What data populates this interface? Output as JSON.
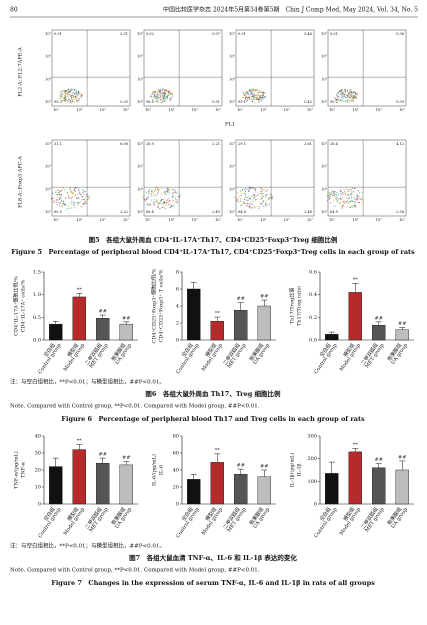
{
  "header": {
    "page": "80",
    "journal": "中国比较医学杂志 2024年5月第34卷第5期　Chin J Comp Med, May 2024, Vol. 34, No. 5"
  },
  "figure5": {
    "row_labels": [
      "FL2-A::FL2:7APE-A",
      "FL8-A::Foxp3 APC-A"
    ],
    "x_label": "FL1",
    "ticks": [
      "10¹",
      "10³",
      "10⁵",
      "10⁷"
    ],
    "plots": [
      [
        {
          "q1": "0.01",
          "q2": "0.31",
          "q3": "99.3",
          "q4": "0.35"
        },
        {
          "q1": "0.02",
          "q2": "0.97",
          "q3": "98.5",
          "q4": "0.51"
        },
        {
          "q1": "0.01",
          "q2": "0.46",
          "q3": "99.1",
          "q4": "0.42"
        },
        {
          "q1": "0.01",
          "q2": "0.38",
          "q3": "99.2",
          "q4": "0.39"
        }
      ],
      [
        {
          "q1": "31.1",
          "q2": "6.08",
          "q3": "60.5",
          "q4": "2.32"
        },
        {
          "q1": "26.9",
          "q2": "2.21",
          "q3": "68.4",
          "q4": "2.49"
        },
        {
          "q1": "29.1",
          "q2": "3.61",
          "q3": "64.8",
          "q4": "2.49"
        },
        {
          "q1": "28.4",
          "q2": "4.12",
          "q3": "64.9",
          "q4": "2.58"
        }
      ]
    ],
    "caption_cn": "图5　各组大鼠外周血 CD4⁺IL-17A⁺Th17、CD4⁺CD25⁺Foxp3⁺Treg 细胞比例",
    "caption_en": "Figure 5　Percentage of peripheral blood CD4⁺IL-17A⁺Th17, CD4⁺CD25⁺Foxp3⁺Treg cells in each group of rats"
  },
  "figure6": {
    "charts": [
      {
        "type": "bar",
        "ylabel": [
          "CD4⁺IL-17A⁺细胞比例/%",
          "CD4⁺IL-17A⁺ cells/%"
        ],
        "categories_cn": [
          "空白组",
          "模型组",
          "二甲双胍组",
          "熊果酸组"
        ],
        "categories": [
          "Control group",
          "Model group",
          "MET group",
          "UA group"
        ],
        "values": [
          0.35,
          0.95,
          0.48,
          0.35
        ],
        "errors": [
          0.06,
          0.08,
          0.07,
          0.05
        ],
        "sig": [
          null,
          "**",
          "##",
          "##"
        ],
        "colors": [
          "#111111",
          "#b52a2a",
          "#555555",
          "#bdbdbd"
        ],
        "ylim": [
          0,
          1.5
        ],
        "yticks": [
          {
            "value": 0,
            "label": "0.0"
          },
          {
            "value": 0.5,
            "label": "0.5"
          },
          {
            "value": 1,
            "label": "1.0"
          },
          {
            "value": 1.5,
            "label": "1.5"
          }
        ]
      },
      {
        "type": "bar",
        "ylabel": [
          "CD4⁺CD25⁺Foxp3⁺细胞比例/%",
          "CD4⁺CD25⁺Foxp3⁺ T cells/%"
        ],
        "categories_cn": [
          "空白组",
          "模型组",
          "二甲双胍组",
          "熊果酸组"
        ],
        "categories": [
          "Control group",
          "Model group",
          "MET group",
          "UA group"
        ],
        "values": [
          6.0,
          2.2,
          3.5,
          4.0
        ],
        "errors": [
          0.8,
          0.5,
          0.9,
          0.7
        ],
        "sig": [
          null,
          "**",
          "##",
          "##"
        ],
        "colors": [
          "#111111",
          "#b52a2a",
          "#555555",
          "#bdbdbd"
        ],
        "ylim": [
          0,
          8
        ],
        "yticks": [
          0,
          2,
          4,
          6,
          8
        ]
      },
      {
        "type": "bar",
        "ylabel": [
          "Th17/Treg比值",
          "Th17/Treg ratio"
        ],
        "categories_cn": [
          "空白组",
          "模型组",
          "二甲双胍组",
          "熊果酸组"
        ],
        "categories": [
          "Control group",
          "Model group",
          "MET group",
          "UA group"
        ],
        "values": [
          0.05,
          0.42,
          0.13,
          0.09
        ],
        "errors": [
          0.02,
          0.08,
          0.03,
          0.02
        ],
        "sig": [
          null,
          "**",
          "##",
          "##"
        ],
        "colors": [
          "#111111",
          "#b52a2a",
          "#555555",
          "#bdbdbd"
        ],
        "ylim": [
          0,
          0.6
        ],
        "yticks": [
          {
            "value": 0,
            "label": "0.0"
          },
          {
            "value": 0.2,
            "label": "0.2"
          },
          {
            "value": 0.4,
            "label": "0.4"
          },
          {
            "value": 0.6,
            "label": "0.6"
          }
        ]
      }
    ],
    "note_cn": "注：与空白组相比，**P<0.01；与模型组相比，##P<0.01。",
    "caption_cn": "图6　各组大鼠外周血 Th17、Treg 细胞比例",
    "note_en": "Note. Compared with Control group, **P<0.01. Compared with Model group, ##P<0.01.",
    "caption_en": "Figure 6　Percentage of peripheral blood Th17 and Treg cells in each group of rats"
  },
  "figure7": {
    "charts": [
      {
        "type": "bar",
        "ylabel": [
          "TNF-α/(pg/mL)",
          "TNF-α"
        ],
        "categories_cn": [
          "空白组",
          "模型组",
          "二甲双胍组",
          "熊果酸组"
        ],
        "categories": [
          "Control group",
          "Model group",
          "MET group",
          "UA group"
        ],
        "values": [
          22,
          32,
          24,
          23
        ],
        "errors": [
          5,
          3,
          3,
          2
        ],
        "sig": [
          null,
          "**",
          "##",
          "##"
        ],
        "colors": [
          "#111111",
          "#b52a2a",
          "#555555",
          "#bdbdbd"
        ],
        "ylim": [
          0,
          40
        ],
        "yticks": [
          0,
          10,
          20,
          30,
          40
        ]
      },
      {
        "type": "bar",
        "ylabel": [
          "IL-6/(pg/mL)",
          "IL-6"
        ],
        "categories_cn": [
          "空白组",
          "模型组",
          "二甲双胍组",
          "熊果酸组"
        ],
        "categories": [
          "Control group",
          "Model group",
          "MET group",
          "UA group"
        ],
        "values": [
          29,
          49,
          35,
          32
        ],
        "errors": [
          6,
          10,
          6,
          8
        ],
        "sig": [
          null,
          "**",
          "##",
          "##"
        ],
        "colors": [
          "#111111",
          "#b52a2a",
          "#555555",
          "#bdbdbd"
        ],
        "ylim": [
          0,
          80
        ],
        "yticks": [
          0,
          20,
          40,
          60,
          80
        ]
      },
      {
        "type": "bar",
        "ylabel": [
          "IL-1β/(pg/mL)",
          "IL-1β"
        ],
        "categories_cn": [
          "空白组",
          "模型组",
          "二甲双胍组",
          "熊果酸组"
        ],
        "categories": [
          "Control group",
          "Model group",
          "MET group",
          "UA group"
        ],
        "values": [
          135,
          230,
          160,
          150
        ],
        "errors": [
          50,
          15,
          18,
          40
        ],
        "sig": [
          null,
          "**",
          "##",
          "##"
        ],
        "colors": [
          "#111111",
          "#b52a2a",
          "#555555",
          "#bdbdbd"
        ],
        "ylim": [
          0,
          300
        ],
        "yticks": [
          0,
          100,
          200,
          300
        ]
      }
    ],
    "note_cn": "注：与空白组相比，**P<0.01；与模型组相比，##P<0.01。",
    "caption_cn": "图7　各组大鼠血清 TNF-α、IL-6 和 IL-1β 表达的变化",
    "note_en": "Note. Compared with Control group, **P<0.01. Compared with Model group, ##P<0.01.",
    "caption_en": "Figure 7　Changes in the expression of serum TNF-α, IL-6 and IL-1β in rats of all groups"
  }
}
